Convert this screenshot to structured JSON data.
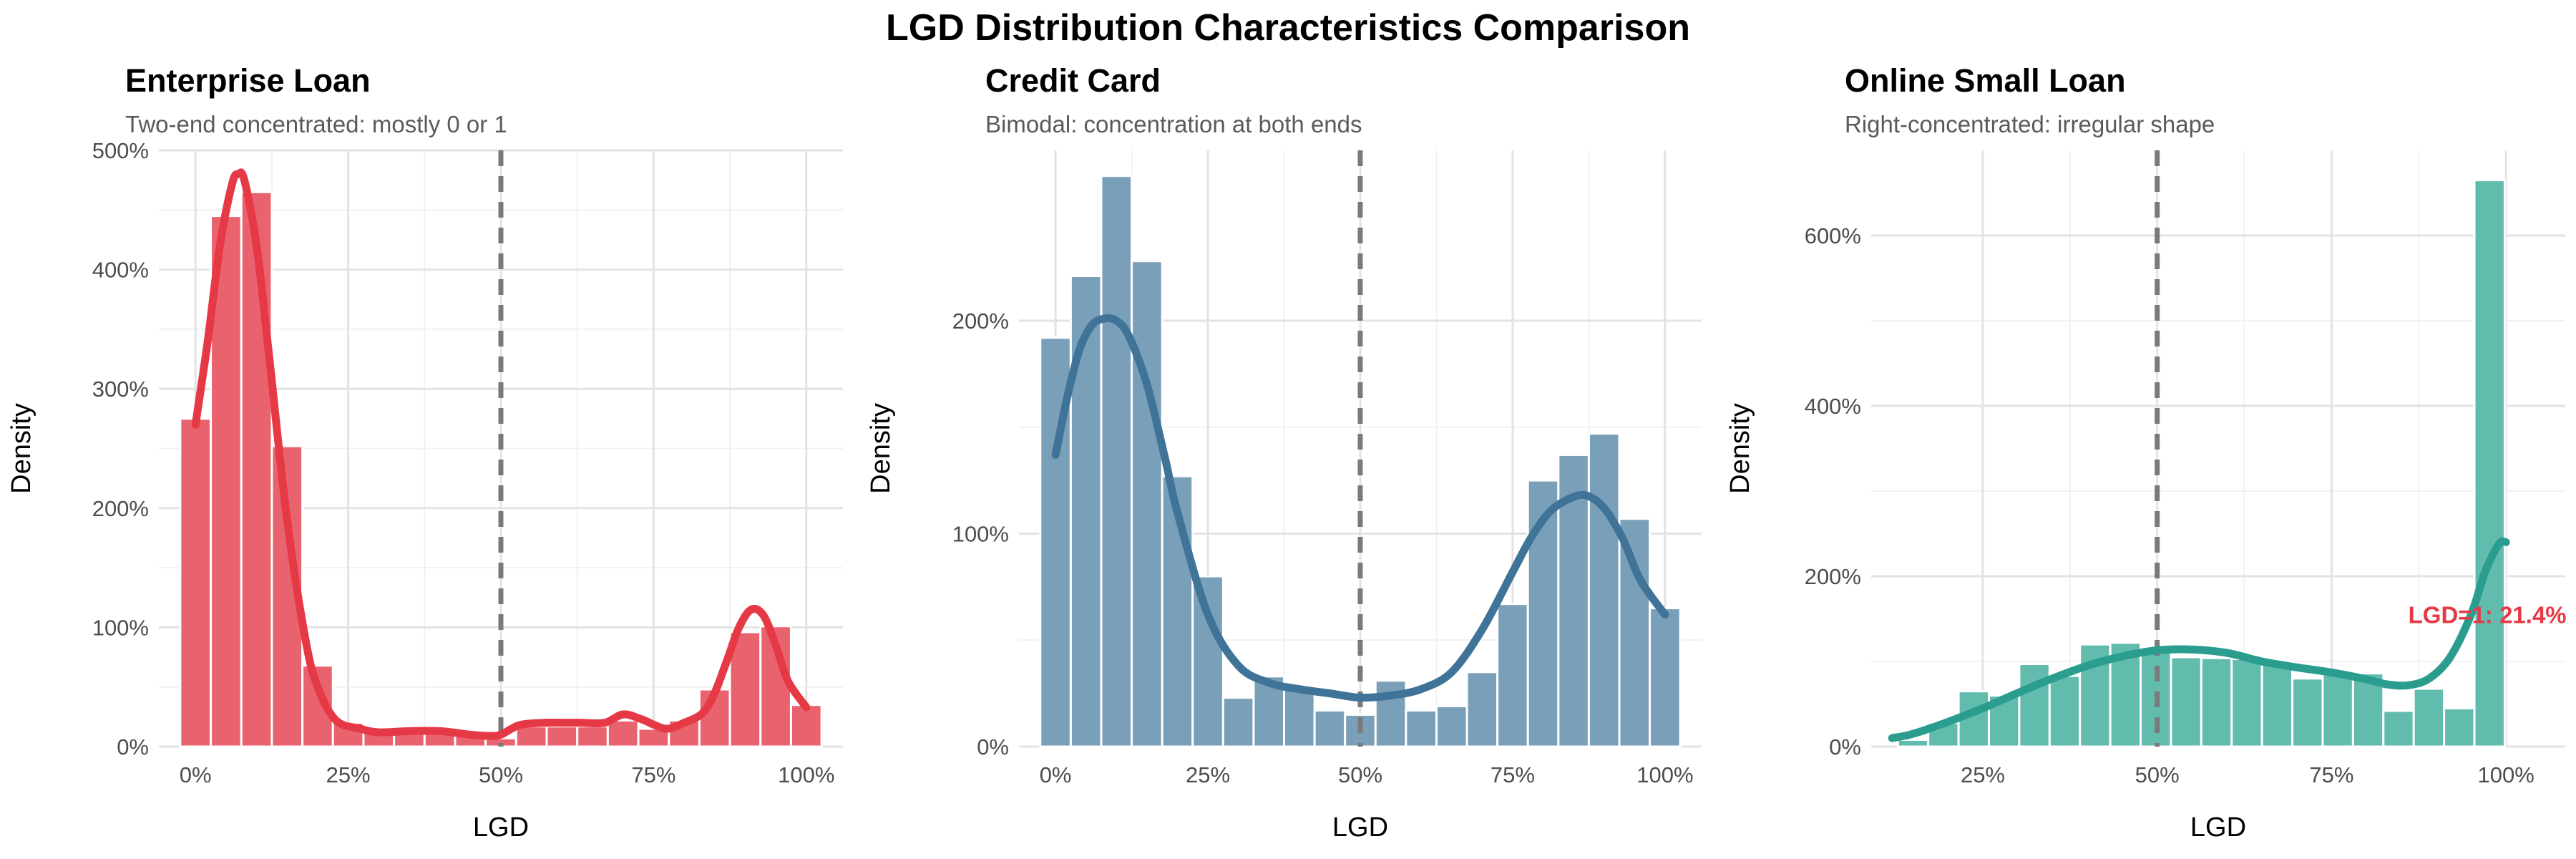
{
  "figure": {
    "title": "LGD Distribution Characteristics Comparison"
  },
  "chart_data": [
    {
      "type": "histogram",
      "title": "Enterprise Loan",
      "subtitle": "Two-end concentrated: mostly 0 or 1",
      "xlabel": "LGD",
      "ylabel": "Density",
      "xlim": [
        -0.06,
        1.06
      ],
      "ylim": [
        0,
        5.0
      ],
      "x_ticks": [
        0,
        0.25,
        0.5,
        0.75,
        1.0
      ],
      "x_tick_labels": [
        "0%",
        "25%",
        "50%",
        "75%",
        "100%"
      ],
      "y_ticks": [
        0,
        1,
        2,
        3,
        4,
        5
      ],
      "y_tick_labels": [
        "0%",
        "100%",
        "200%",
        "300%",
        "400%",
        "500%"
      ],
      "bar_color": "#e9636f",
      "line_color": "#e63946",
      "vline": 0.5,
      "bins": {
        "width": 0.05,
        "centers": [
          0.0,
          0.05,
          0.1,
          0.15,
          0.2,
          0.25,
          0.3,
          0.35,
          0.4,
          0.45,
          0.5,
          0.55,
          0.6,
          0.65,
          0.7,
          0.75,
          0.8,
          0.85,
          0.9,
          0.95,
          1.0
        ],
        "values": [
          2.75,
          4.45,
          4.65,
          2.52,
          0.68,
          0.2,
          0.14,
          0.12,
          0.12,
          0.1,
          0.07,
          0.17,
          0.17,
          0.17,
          0.22,
          0.15,
          0.22,
          0.48,
          0.96,
          1.01,
          0.35
        ]
      },
      "density": {
        "x": [
          0.0,
          0.02,
          0.04,
          0.06,
          0.07,
          0.08,
          0.1,
          0.12,
          0.15,
          0.18,
          0.2,
          0.23,
          0.27,
          0.3,
          0.35,
          0.4,
          0.45,
          0.48,
          0.5,
          0.53,
          0.57,
          0.6,
          0.63,
          0.67,
          0.7,
          0.73,
          0.77,
          0.8,
          0.83,
          0.85,
          0.87,
          0.89,
          0.91,
          0.93,
          0.95,
          0.97,
          1.0
        ],
        "y": [
          2.7,
          3.4,
          4.2,
          4.72,
          4.8,
          4.75,
          4.2,
          3.3,
          1.9,
          0.9,
          0.5,
          0.22,
          0.15,
          0.12,
          0.13,
          0.13,
          0.1,
          0.09,
          0.1,
          0.18,
          0.2,
          0.2,
          0.2,
          0.2,
          0.27,
          0.23,
          0.15,
          0.2,
          0.28,
          0.45,
          0.72,
          1.0,
          1.15,
          1.1,
          0.85,
          0.55,
          0.33
        ]
      }
    },
    {
      "type": "histogram",
      "title": "Credit Card",
      "subtitle": "Bimodal: concentration at both ends",
      "xlabel": "LGD",
      "ylabel": "Density",
      "xlim": [
        -0.06,
        1.06
      ],
      "ylim": [
        0,
        2.8
      ],
      "x_ticks": [
        0,
        0.25,
        0.5,
        0.75,
        1.0
      ],
      "x_tick_labels": [
        "0%",
        "25%",
        "50%",
        "75%",
        "100%"
      ],
      "y_ticks": [
        0,
        1,
        2
      ],
      "y_tick_labels": [
        "0%",
        "100%",
        "200%"
      ],
      "bar_color": "#7a9fb8",
      "line_color": "#3f7398",
      "vline": 0.5,
      "bins": {
        "width": 0.05,
        "centers": [
          0.0,
          0.05,
          0.1,
          0.15,
          0.2,
          0.25,
          0.3,
          0.35,
          0.4,
          0.45,
          0.5,
          0.55,
          0.6,
          0.65,
          0.7,
          0.75,
          0.8,
          0.85,
          0.9,
          0.95,
          1.0
        ],
        "values": [
          1.92,
          2.21,
          2.68,
          2.28,
          1.27,
          0.8,
          0.23,
          0.33,
          0.27,
          0.17,
          0.15,
          0.31,
          0.17,
          0.19,
          0.35,
          0.67,
          1.25,
          1.37,
          1.47,
          1.07,
          0.65
        ]
      },
      "density": {
        "x": [
          0.0,
          0.02,
          0.04,
          0.06,
          0.08,
          0.1,
          0.12,
          0.15,
          0.18,
          0.2,
          0.25,
          0.3,
          0.35,
          0.4,
          0.45,
          0.5,
          0.55,
          0.6,
          0.65,
          0.7,
          0.75,
          0.78,
          0.81,
          0.84,
          0.87,
          0.9,
          0.93,
          0.96,
          1.0
        ],
        "y": [
          1.37,
          1.65,
          1.87,
          1.98,
          2.01,
          2.0,
          1.93,
          1.7,
          1.35,
          1.1,
          0.62,
          0.38,
          0.3,
          0.27,
          0.25,
          0.23,
          0.24,
          0.27,
          0.35,
          0.55,
          0.82,
          0.98,
          1.1,
          1.16,
          1.18,
          1.12,
          0.98,
          0.78,
          0.62
        ]
      }
    },
    {
      "type": "histogram",
      "title": "Online Small Loan",
      "subtitle": "Right-concentrated: irregular shape",
      "xlabel": "LGD",
      "ylabel": "Density",
      "xlim": [
        0.09,
        1.085
      ],
      "ylim": [
        0,
        7.0
      ],
      "x_ticks": [
        0.25,
        0.5,
        0.75,
        1.0
      ],
      "x_tick_labels": [
        "25%",
        "50%",
        "75%",
        "100%"
      ],
      "y_ticks": [
        0,
        2,
        4,
        6
      ],
      "y_tick_labels": [
        "0%",
        "200%",
        "400%",
        "600%"
      ],
      "bar_color": "#62bcad",
      "line_color": "#2a9d8f",
      "vline": 0.5,
      "annotation": {
        "text": "LGD=1: 21.4%",
        "x": 0.86,
        "y": 1.45,
        "color": "#e63946"
      },
      "bins": {
        "width": 0.0435,
        "centers": [
          0.15,
          0.1935,
          0.237,
          0.2805,
          0.324,
          0.3675,
          0.411,
          0.4545,
          0.498,
          0.5415,
          0.585,
          0.6285,
          0.672,
          0.7155,
          0.759,
          0.8025,
          0.846,
          0.8895,
          0.933,
          0.9765,
          1.0
        ],
        "values": [
          0.08,
          0.28,
          0.65,
          0.6,
          0.97,
          0.83,
          1.2,
          1.22,
          1.14,
          1.05,
          1.04,
          1.03,
          0.99,
          0.8,
          0.88,
          0.86,
          0.42,
          0.68,
          0.45,
          6.65,
          0.0
        ]
      },
      "density": {
        "x": [
          0.12,
          0.15,
          0.2,
          0.25,
          0.3,
          0.35,
          0.4,
          0.45,
          0.5,
          0.55,
          0.6,
          0.65,
          0.7,
          0.75,
          0.8,
          0.83,
          0.86,
          0.89,
          0.92,
          0.95,
          0.97,
          0.99,
          1.0
        ],
        "y": [
          0.1,
          0.15,
          0.29,
          0.45,
          0.63,
          0.8,
          0.95,
          1.06,
          1.13,
          1.14,
          1.1,
          1.0,
          0.93,
          0.87,
          0.79,
          0.73,
          0.72,
          0.8,
          1.05,
          1.55,
          2.05,
          2.38,
          2.4
        ]
      }
    }
  ]
}
